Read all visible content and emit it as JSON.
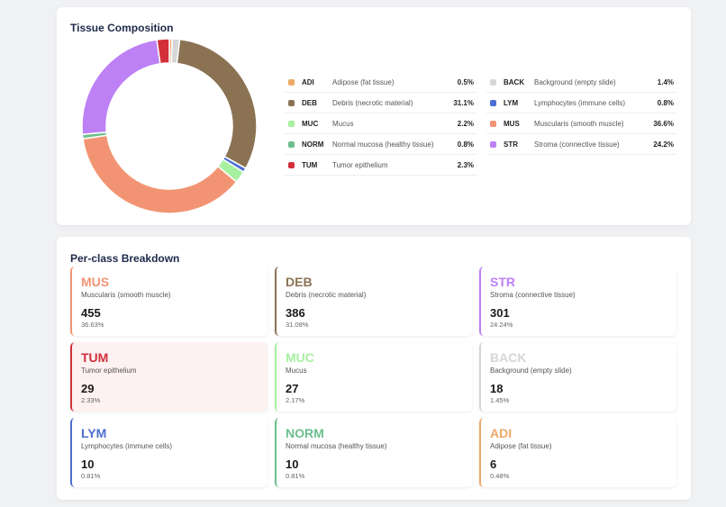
{
  "chart_data": {
    "type": "donut",
    "title": "Tissue Composition",
    "categories": [
      "ADI",
      "BACK",
      "DEB",
      "LYM",
      "MUC",
      "MUS",
      "NORM",
      "STR",
      "TUM"
    ],
    "descriptions": [
      "Adipose (fat tissue)",
      "Background (empty slide)",
      "Debris (necrotic material)",
      "Lymphocytes (immune cells)",
      "Mucus",
      "Muscularis (smooth muscle)",
      "Normal mucosa (healthy tissue)",
      "Stroma (connective tissue)",
      "Tumor epithelium"
    ],
    "values": [
      0.5,
      1.4,
      31.1,
      0.8,
      2.2,
      36.6,
      0.8,
      24.2,
      2.3
    ],
    "value_labels": [
      "0.5%",
      "1.4%",
      "31.1%",
      "0.8%",
      "2.2%",
      "36.6%",
      "0.8%",
      "24.2%",
      "2.3%"
    ],
    "colors": [
      "#eda968",
      "#d6d6d6",
      "#8a7253",
      "#4d6fd1",
      "#a7f0a0",
      "#f29473",
      "#6cbf8c",
      "#bd80f5",
      "#d22f3b"
    ]
  },
  "breakdown": {
    "title": "Per-class Breakdown",
    "cards": [
      {
        "code": "MUS",
        "description": "Muscularis (smooth muscle)",
        "count": "455",
        "percent": "36.63%",
        "color": "#f29473"
      },
      {
        "code": "DEB",
        "description": "Debris (necrotic material)",
        "count": "386",
        "percent": "31.08%",
        "color": "#8a7253"
      },
      {
        "code": "STR",
        "description": "Stroma (connective tissue)",
        "count": "301",
        "percent": "24.24%",
        "color": "#bd80f5"
      },
      {
        "code": "TUM",
        "description": "Tumor epithelium",
        "count": "29",
        "percent": "2.33%",
        "color": "#d22f3b"
      },
      {
        "code": "MUC",
        "description": "Mucus",
        "count": "27",
        "percent": "2.17%",
        "color": "#a7f0a0"
      },
      {
        "code": "BACK",
        "description": "Background (empty slide)",
        "count": "18",
        "percent": "1.45%",
        "color": "#d6d6d6"
      },
      {
        "code": "LYM",
        "description": "Lymphocytes (immune cells)",
        "count": "10",
        "percent": "0.81%",
        "color": "#4d6fd1"
      },
      {
        "code": "NORM",
        "description": "Normal mucosa (healthy tissue)",
        "count": "10",
        "percent": "0.81%",
        "color": "#6cbf8c"
      },
      {
        "code": "ADI",
        "description": "Adipose (fat tissue)",
        "count": "6",
        "percent": "0.48%",
        "color": "#eda968"
      }
    ]
  }
}
